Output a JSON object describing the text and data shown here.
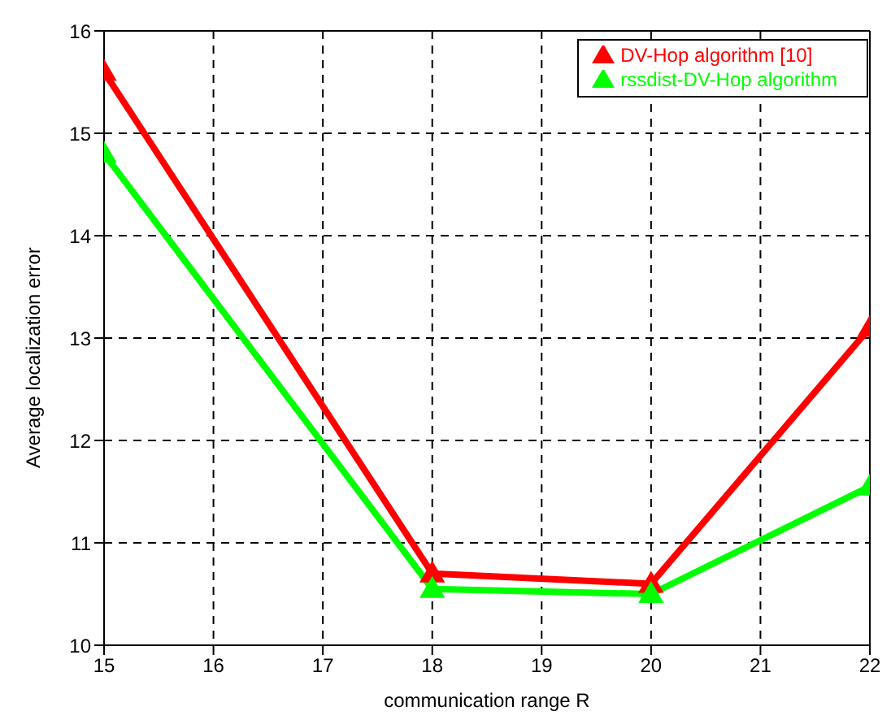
{
  "chart_data": {
    "type": "line",
    "xlabel": "communication range R",
    "ylabel": "Average localization error",
    "x": [
      15,
      18,
      20,
      22
    ],
    "series": [
      {
        "name": "DV-Hop algorithm [10]",
        "color": "#ff0000",
        "values": [
          15.6,
          10.7,
          10.6,
          13.1
        ]
      },
      {
        "name": "rssdist-DV-Hop algorithm",
        "color": "#00ff00",
        "values": [
          14.8,
          10.55,
          10.5,
          11.55
        ]
      }
    ],
    "xlim": [
      15,
      22
    ],
    "xticks": [
      15,
      16,
      17,
      18,
      19,
      20,
      21,
      22
    ],
    "ylim": [
      10,
      16
    ],
    "yticks": [
      10,
      11,
      12,
      13,
      14,
      15,
      16
    ],
    "grid": true,
    "legend": "top right",
    "marker": "triangle",
    "line_style": "solid"
  }
}
